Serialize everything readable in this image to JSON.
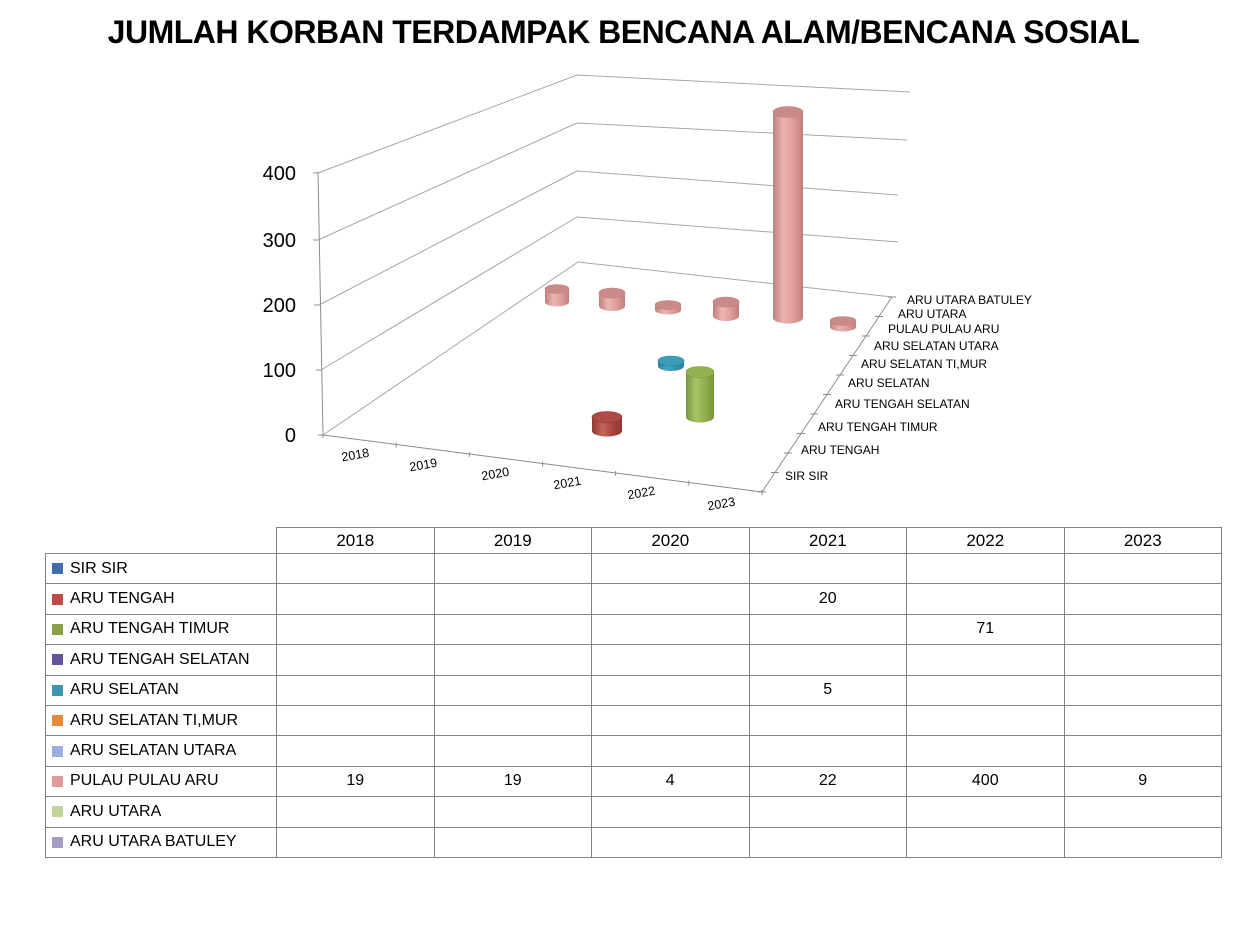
{
  "title": "JUMLAH KORBAN TERDAMPAK BENCANA ALAM/BENCANA SOSIAL",
  "chart_data": {
    "type": "bar",
    "subtype": "3d-cylinder",
    "title": "JUMLAH KORBAN TERDAMPAK BENCANA ALAM/BENCANA SOSIAL",
    "categories": [
      "2018",
      "2019",
      "2020",
      "2021",
      "2022",
      "2023"
    ],
    "value_axis_ticks": [
      "0",
      "100",
      "200",
      "300",
      "400"
    ],
    "ylim": [
      0,
      400
    ],
    "grid": true,
    "legend_position": "table-left-swatches",
    "series": [
      {
        "name": "SIR SIR",
        "color": "#3F6EA8",
        "values": [
          null,
          null,
          null,
          null,
          null,
          null
        ]
      },
      {
        "name": "ARU TENGAH",
        "color": "#BE4B48",
        "values": [
          null,
          null,
          null,
          20,
          null,
          null
        ]
      },
      {
        "name": "ARU TENGAH TIMUR",
        "color": "#89A049",
        "values": [
          null,
          null,
          null,
          null,
          71,
          null
        ]
      },
      {
        "name": "ARU TENGAH SELATAN",
        "color": "#66519B",
        "values": [
          null,
          null,
          null,
          null,
          null,
          null
        ]
      },
      {
        "name": "ARU SELATAN",
        "color": "#3D95AE",
        "values": [
          null,
          null,
          null,
          5,
          null,
          null
        ]
      },
      {
        "name": "ARU SELATAN TI,MUR",
        "color": "#E68A39",
        "values": [
          null,
          null,
          null,
          null,
          null,
          null
        ]
      },
      {
        "name": "ARU SELATAN UTARA",
        "color": "#98AEDE",
        "values": [
          null,
          null,
          null,
          null,
          null,
          null
        ]
      },
      {
        "name": "PULAU PULAU ARU",
        "color": "#DD9A98",
        "values": [
          19,
          19,
          4,
          22,
          400,
          9
        ]
      },
      {
        "name": "ARU UTARA",
        "color": "#BFD59B",
        "values": [
          null,
          null,
          null,
          null,
          null,
          null
        ]
      },
      {
        "name": "ARU UTARA BATULEY",
        "color": "#A79BC8",
        "values": [
          null,
          null,
          null,
          null,
          null,
          null
        ]
      }
    ]
  }
}
